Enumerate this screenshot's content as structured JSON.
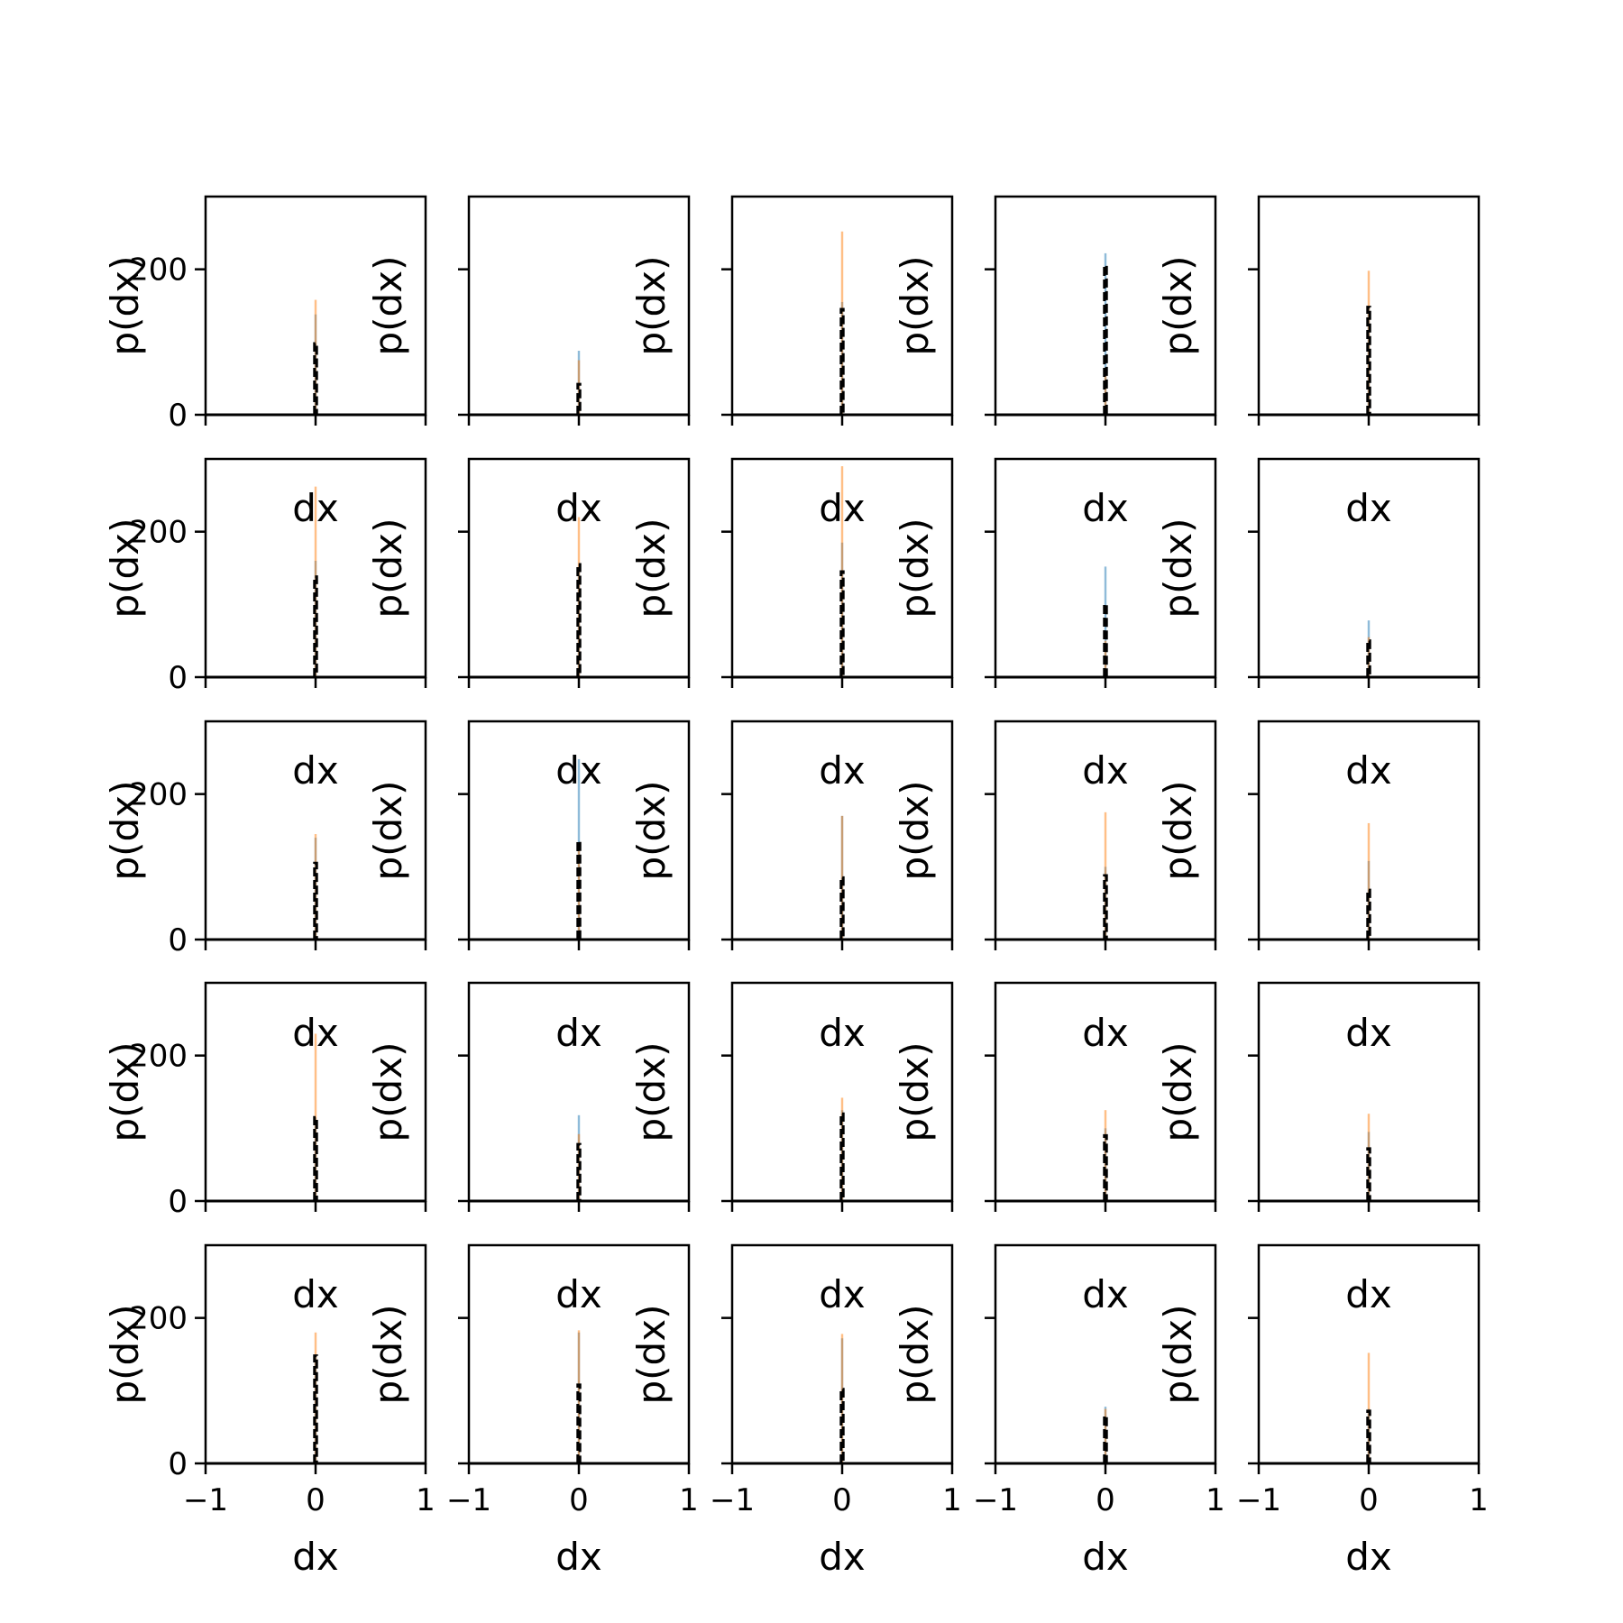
{
  "colors": {
    "series_a": "#1f77b4",
    "series_b": "#ff7f0e",
    "outline": "#000000",
    "frame": "#000000"
  },
  "chart_data": {
    "type": "bar",
    "layout": "small-multiples grid 5 rows x 5 columns",
    "xlabel": "dx",
    "ylabel": "p(dx)",
    "xlim": [
      -1,
      1
    ],
    "ylim": [
      0,
      300
    ],
    "xticks": [
      -1,
      0,
      1
    ],
    "yticks": [
      0,
      200
    ],
    "xtick_labels": [
      "−1",
      "0",
      "1"
    ],
    "ytick_labels": [
      "0",
      "200"
    ],
    "grid": false,
    "legend": "none",
    "bin_width": 0.02,
    "panels": [
      {
        "row": 1,
        "col": 1,
        "peak_series_a": 138,
        "peak_series_b": 158,
        "peak_outline": 98
      },
      {
        "row": 1,
        "col": 2,
        "peak_series_a": 88,
        "peak_series_b": 75,
        "peak_outline": 42
      },
      {
        "row": 1,
        "col": 3,
        "peak_series_a": 155,
        "peak_series_b": 252,
        "peak_outline": 145
      },
      {
        "row": 1,
        "col": 4,
        "peak_series_a": 222,
        "peak_series_b": 55,
        "peak_outline": 205
      },
      {
        "row": 1,
        "col": 5,
        "peak_series_a": 150,
        "peak_series_b": 198,
        "peak_outline": 148
      },
      {
        "row": 2,
        "col": 1,
        "peak_series_a": 160,
        "peak_series_b": 262,
        "peak_outline": 138
      },
      {
        "row": 2,
        "col": 2,
        "peak_series_a": 150,
        "peak_series_b": 220,
        "peak_outline": 155
      },
      {
        "row": 2,
        "col": 3,
        "peak_series_a": 185,
        "peak_series_b": 290,
        "peak_outline": 145
      },
      {
        "row": 2,
        "col": 4,
        "peak_series_a": 152,
        "peak_series_b": 50,
        "peak_outline": 100
      },
      {
        "row": 2,
        "col": 5,
        "peak_series_a": 78,
        "peak_series_b": 55,
        "peak_outline": 50
      },
      {
        "row": 3,
        "col": 1,
        "peak_series_a": 140,
        "peak_series_b": 145,
        "peak_outline": 105
      },
      {
        "row": 3,
        "col": 2,
        "peak_series_a": 248,
        "peak_series_b": 130,
        "peak_outline": 135
      },
      {
        "row": 3,
        "col": 3,
        "peak_series_a": 170,
        "peak_series_b": 170,
        "peak_outline": 85
      },
      {
        "row": 3,
        "col": 4,
        "peak_series_a": 100,
        "peak_series_b": 175,
        "peak_outline": 88
      },
      {
        "row": 3,
        "col": 5,
        "peak_series_a": 108,
        "peak_series_b": 160,
        "peak_outline": 68
      },
      {
        "row": 4,
        "col": 1,
        "peak_series_a": 110,
        "peak_series_b": 230,
        "peak_outline": 115
      },
      {
        "row": 4,
        "col": 2,
        "peak_series_a": 118,
        "peak_series_b": 92,
        "peak_outline": 78
      },
      {
        "row": 4,
        "col": 3,
        "peak_series_a": 125,
        "peak_series_b": 142,
        "peak_outline": 120
      },
      {
        "row": 4,
        "col": 4,
        "peak_series_a": 100,
        "peak_series_b": 125,
        "peak_outline": 90
      },
      {
        "row": 4,
        "col": 5,
        "peak_series_a": 95,
        "peak_series_b": 120,
        "peak_outline": 72
      },
      {
        "row": 5,
        "col": 1,
        "peak_series_a": 150,
        "peak_series_b": 180,
        "peak_outline": 148
      },
      {
        "row": 5,
        "col": 2,
        "peak_series_a": 180,
        "peak_series_b": 183,
        "peak_outline": 108
      },
      {
        "row": 5,
        "col": 3,
        "peak_series_a": 172,
        "peak_series_b": 178,
        "peak_outline": 102
      },
      {
        "row": 5,
        "col": 4,
        "peak_series_a": 78,
        "peak_series_b": 75,
        "peak_outline": 65
      },
      {
        "row": 5,
        "col": 5,
        "peak_series_a": 75,
        "peak_series_b": 152,
        "peak_outline": 72
      }
    ]
  }
}
